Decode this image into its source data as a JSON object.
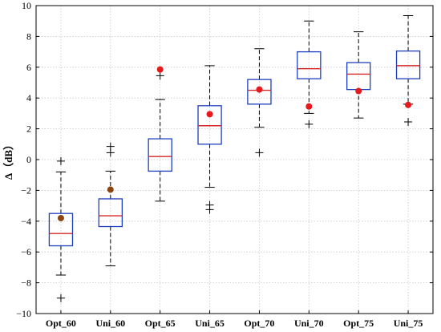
{
  "chart_data": {
    "type": "box",
    "title": "",
    "xlabel": "",
    "ylabel": "Δ（dB）",
    "ylim": [
      -10,
      10
    ],
    "yticks": [
      -10,
      -8,
      -6,
      -4,
      -2,
      0,
      2,
      4,
      6,
      8,
      10
    ],
    "grid": true,
    "categories": [
      "Opt_60",
      "Uni_60",
      "Opt_65",
      "Uni_65",
      "Opt_70",
      "Uni_70",
      "Opt_75",
      "Uni_75"
    ],
    "boxes": [
      {
        "whisker_low": -7.5,
        "q1": -5.6,
        "median": -4.8,
        "q3": -3.5,
        "whisker_high": -0.8,
        "outliers": [
          -9.0,
          -0.1
        ],
        "mean": -3.8,
        "mean_color": "#8b4513"
      },
      {
        "whisker_low": -6.9,
        "q1": -4.35,
        "median": -3.65,
        "q3": -2.55,
        "whisker_high": -0.75,
        "outliers": [
          0.45,
          0.85
        ],
        "mean": -1.95,
        "mean_color": "#8b4513"
      },
      {
        "whisker_low": -2.7,
        "q1": -0.75,
        "median": 0.2,
        "q3": 1.35,
        "whisker_high": 3.9,
        "outliers": [
          5.45
        ],
        "mean": 5.85,
        "mean_color": "#e41a1c"
      },
      {
        "whisker_low": -1.8,
        "q1": 1.0,
        "median": 2.2,
        "q3": 3.5,
        "whisker_high": 6.1,
        "outliers": [
          -2.95,
          -3.25
        ],
        "mean": 2.95,
        "mean_color": "#e41a1c"
      },
      {
        "whisker_low": 2.1,
        "q1": 3.6,
        "median": 4.5,
        "q3": 5.2,
        "whisker_high": 7.2,
        "outliers": [
          0.45
        ],
        "mean": 4.55,
        "mean_color": "#e41a1c"
      },
      {
        "whisker_low": 3.0,
        "q1": 5.25,
        "median": 5.9,
        "q3": 7.0,
        "whisker_high": 9.0,
        "outliers": [
          2.3
        ],
        "mean": 3.45,
        "mean_color": "#e41a1c"
      },
      {
        "whisker_low": 2.7,
        "q1": 4.55,
        "median": 5.55,
        "q3": 6.3,
        "whisker_high": 8.3,
        "outliers": [],
        "mean": 4.45,
        "mean_color": "#e41a1c"
      },
      {
        "whisker_low": 3.6,
        "q1": 5.25,
        "median": 6.1,
        "q3": 7.05,
        "whisker_high": 9.35,
        "outliers": [
          2.45
        ],
        "mean": 3.55,
        "mean_color": "#e41a1c"
      }
    ],
    "colors": {
      "box": "#1f3fbf",
      "median": "#d62728",
      "whisker": "#000000",
      "grid": "#c8c8c8"
    }
  }
}
